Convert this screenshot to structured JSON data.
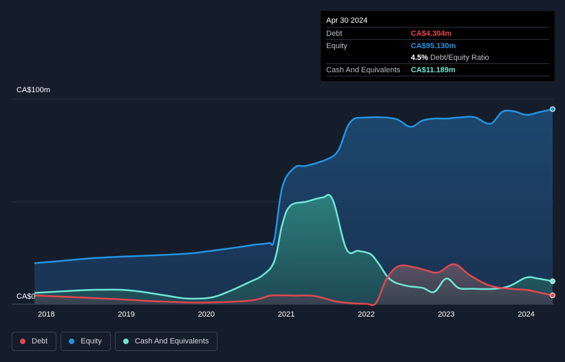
{
  "tooltip": {
    "date": "Apr 30 2024",
    "debt_label": "Debt",
    "debt_value": "CA$4.304m",
    "equity_label": "Equity",
    "equity_value": "CA$95.130m",
    "ratio_value": "4.5%",
    "ratio_label": "Debt/Equity Ratio",
    "cash_label": "Cash And Equivalents",
    "cash_value": "CA$11.189m"
  },
  "colors": {
    "debt": "#e2474f",
    "equity": "#2394e2",
    "cash": "#6ee7d5",
    "background": "#151c2a"
  },
  "legend": [
    {
      "label": "Debt",
      "color": "#e2474f"
    },
    {
      "label": "Equity",
      "color": "#2394e2"
    },
    {
      "label": "Cash And Equivalents",
      "color": "#6ee7d5"
    }
  ],
  "chart_data": {
    "type": "area",
    "title": "",
    "xlabel": "",
    "ylabel": "",
    "y_tick_labels": [
      "CA$100m",
      "CA$0"
    ],
    "x_tick_labels": [
      "2018",
      "2019",
      "2020",
      "2021",
      "2022",
      "2023",
      "2024"
    ],
    "x_ticks": [
      2018,
      2019,
      2020,
      2021,
      2022,
      2023,
      2024
    ],
    "xlim": [
      2017.85,
      2024.33
    ],
    "ylim": [
      0,
      100
    ],
    "grid": true,
    "legend_position": "bottom-left",
    "series": [
      {
        "name": "Equity",
        "color": "#2394e2",
        "x": [
          2017.85,
          2018.3,
          2018.6,
          2019.0,
          2019.4,
          2019.8,
          2020.1,
          2020.4,
          2020.6,
          2020.78,
          2020.85,
          2020.95,
          2021.1,
          2021.25,
          2021.5,
          2021.65,
          2021.8,
          2022.0,
          2022.35,
          2022.55,
          2022.7,
          2022.85,
          2023.0,
          2023.15,
          2023.35,
          2023.55,
          2023.7,
          2023.85,
          2024.0,
          2024.15,
          2024.33
        ],
        "values": [
          20,
          21.5,
          22.5,
          23.3,
          23.9,
          24.8,
          26.2,
          27.8,
          29,
          29.8,
          31.5,
          57,
          66.5,
          67.5,
          70.5,
          75,
          88.8,
          91,
          90.5,
          86.5,
          89.5,
          90.5,
          90.5,
          91,
          91.2,
          88,
          93.8,
          94,
          92.3,
          93.5,
          95.13
        ]
      },
      {
        "name": "Cash And Equivalents",
        "color": "#6ee7d5",
        "x": [
          2017.85,
          2018.3,
          2018.6,
          2018.95,
          2019.2,
          2019.5,
          2019.75,
          2020.05,
          2020.3,
          2020.55,
          2020.7,
          2020.85,
          2020.95,
          2021.05,
          2021.25,
          2021.45,
          2021.58,
          2021.75,
          2021.9,
          2022.05,
          2022.15,
          2022.3,
          2022.5,
          2022.7,
          2022.85,
          2023.0,
          2023.15,
          2023.3,
          2023.6,
          2023.8,
          2024.0,
          2024.15,
          2024.33
        ],
        "values": [
          5.5,
          6.5,
          7,
          7,
          6,
          4.2,
          2.8,
          3.2,
          6.5,
          11,
          14,
          21,
          39,
          48,
          50,
          52,
          51,
          27,
          26,
          24.5,
          20,
          12,
          9,
          8,
          6,
          12.5,
          8,
          7.5,
          7.5,
          9,
          13,
          12.5,
          11.19
        ]
      },
      {
        "name": "Debt",
        "color": "#e2474f",
        "x": [
          2017.85,
          2018.3,
          2018.7,
          2019.0,
          2019.3,
          2019.6,
          2019.85,
          2020.2,
          2020.55,
          2020.7,
          2020.82,
          2021.1,
          2021.35,
          2021.6,
          2021.8,
          2022.0,
          2022.12,
          2022.25,
          2022.4,
          2022.6,
          2022.75,
          2022.9,
          2023.1,
          2023.3,
          2023.55,
          2023.8,
          2024.0,
          2024.15,
          2024.33
        ],
        "values": [
          4.3,
          3.5,
          2.8,
          2.2,
          1.5,
          1.1,
          0.8,
          1,
          1.8,
          3,
          4.3,
          4.2,
          4,
          1.5,
          0.5,
          0.2,
          0.5,
          12,
          18.5,
          18,
          16.5,
          15.5,
          19.5,
          14,
          9,
          7.5,
          7,
          5.8,
          4.304
        ]
      }
    ]
  }
}
